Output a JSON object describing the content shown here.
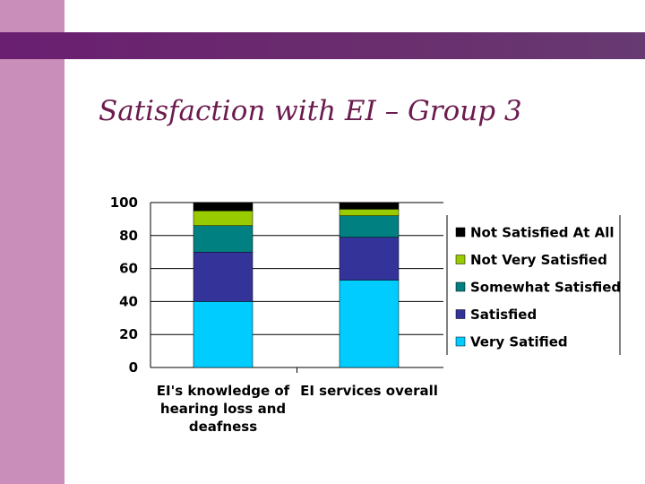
{
  "slide": {
    "title": "Satisfaction with EI – Group 3"
  },
  "colors": {
    "left_band": "#c98fba",
    "top_bar": "#6a2a6e",
    "title": "#6b1b4e"
  },
  "chart_data": {
    "type": "bar",
    "stacked": true,
    "title": "",
    "xlabel": "",
    "ylabel": "",
    "ylim": [
      0,
      100
    ],
    "yticks": [
      0,
      20,
      40,
      60,
      80,
      100
    ],
    "grid": true,
    "legend_position": "right",
    "categories": [
      [
        "EI's knowledge of",
        "hearing loss and",
        "deafness"
      ],
      [
        "EI services overall"
      ]
    ],
    "series": [
      {
        "name": "Very Satified",
        "color": "#00ccff",
        "values": [
          40,
          53
        ]
      },
      {
        "name": "Satisfied",
        "color": "#333399",
        "values": [
          30,
          26
        ]
      },
      {
        "name": "Somewhat Satisfied",
        "color": "#008080",
        "values": [
          16,
          13
        ]
      },
      {
        "name": "Not Very Satisfied",
        "color": "#99cc00",
        "values": [
          9,
          4
        ]
      },
      {
        "name": "Not Satisfied At All",
        "color": "#000000",
        "values": [
          5,
          4
        ]
      }
    ],
    "legend_order": [
      "Not Satisfied At All",
      "Not Very Satisfied",
      "Somewhat Satisfied",
      "Satisfied",
      "Very Satified"
    ]
  }
}
